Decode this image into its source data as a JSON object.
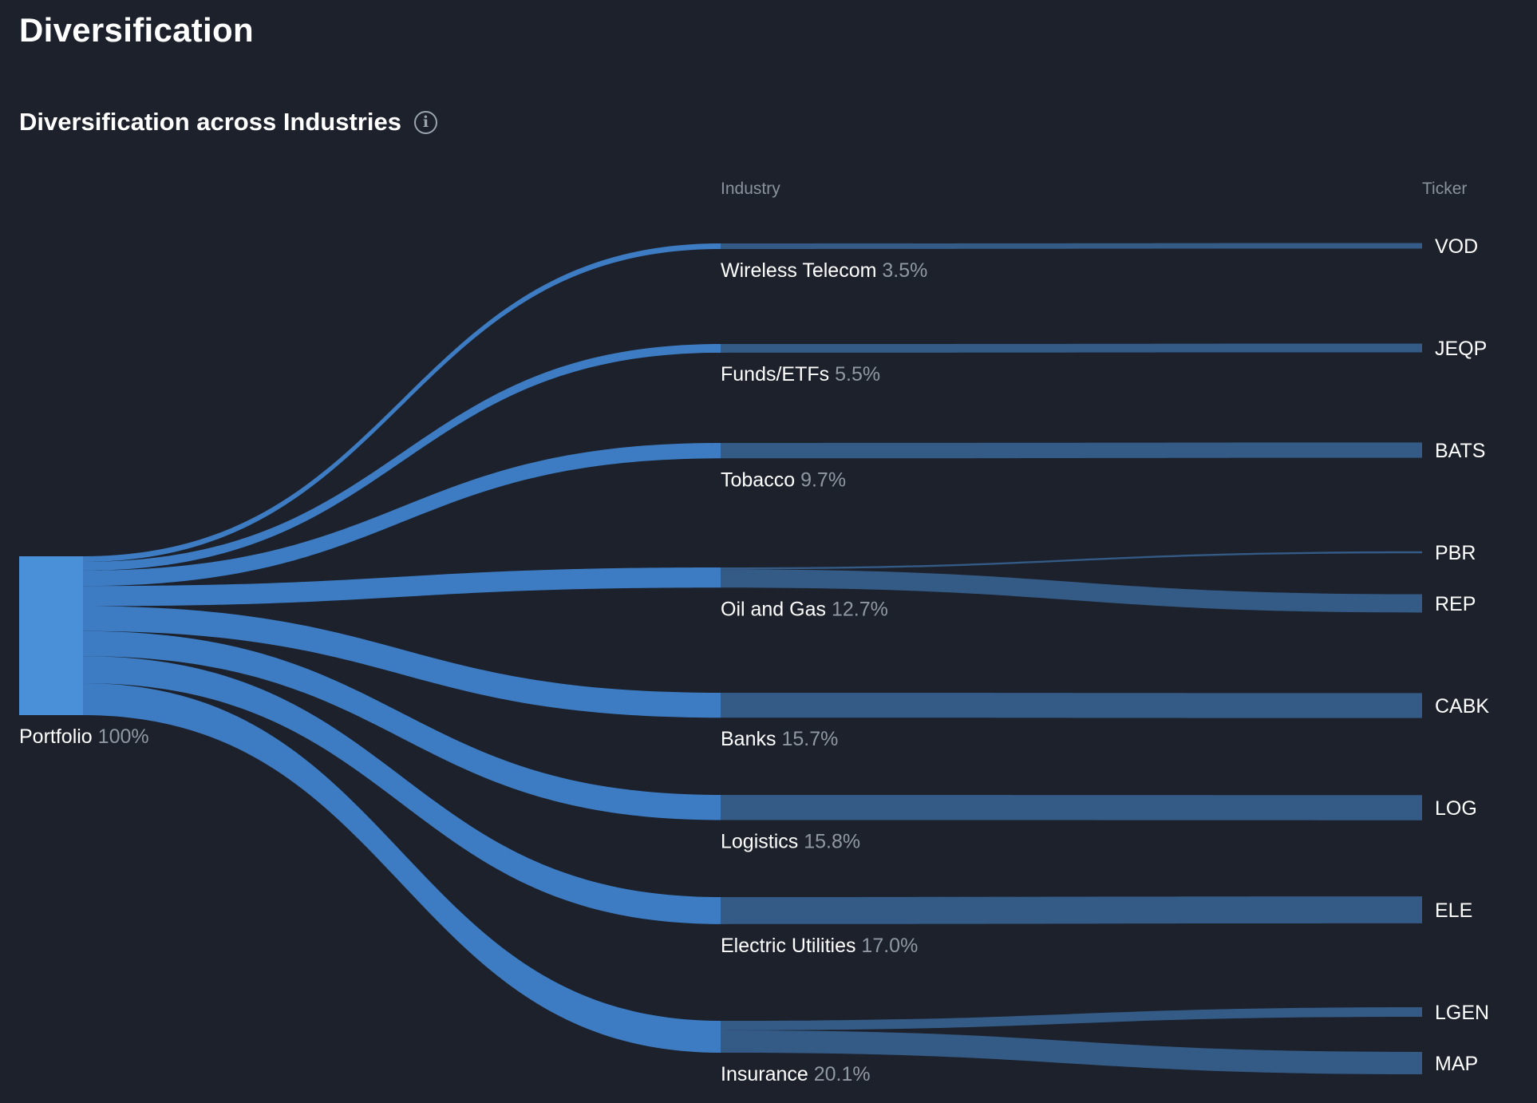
{
  "page": {
    "title": "Diversification"
  },
  "section": {
    "title": "Diversification across Industries",
    "info_icon": "info-icon"
  },
  "colors": {
    "background": "#1c212b",
    "source_node": "#4a90d9",
    "industry_flow": "#3f82cb",
    "ticker_flow": "#345a86"
  },
  "chart_data": {
    "type": "sankey",
    "columns": [
      "Industry",
      "Ticker"
    ],
    "source": {
      "name": "Portfolio",
      "pct": "100%"
    },
    "industries": [
      {
        "name": "Wireless Telecom",
        "pct": "3.5%",
        "value": 3.5
      },
      {
        "name": "Funds/ETFs",
        "pct": "5.5%",
        "value": 5.5
      },
      {
        "name": "Tobacco",
        "pct": "9.7%",
        "value": 9.7
      },
      {
        "name": "Oil and Gas",
        "pct": "12.7%",
        "value": 12.7
      },
      {
        "name": "Banks",
        "pct": "15.7%",
        "value": 15.7
      },
      {
        "name": "Logistics",
        "pct": "15.8%",
        "value": 15.8
      },
      {
        "name": "Electric Utilities",
        "pct": "17.0%",
        "value": 17.0
      },
      {
        "name": "Insurance",
        "pct": "20.1%",
        "value": 20.1
      }
    ],
    "tickers": [
      {
        "ticker": "VOD",
        "industry": "Wireless Telecom",
        "value": 3.5
      },
      {
        "ticker": "JEQP",
        "industry": "Funds/ETFs",
        "value": 5.5
      },
      {
        "ticker": "BATS",
        "industry": "Tobacco",
        "value": 9.7
      },
      {
        "ticker": "PBR",
        "industry": "Oil and Gas",
        "value": 1.2
      },
      {
        "ticker": "REP",
        "industry": "Oil and Gas",
        "value": 11.5
      },
      {
        "ticker": "CABK",
        "industry": "Banks",
        "value": 15.7
      },
      {
        "ticker": "LOG",
        "industry": "Logistics",
        "value": 15.8
      },
      {
        "ticker": "ELE",
        "industry": "Electric Utilities",
        "value": 17.0
      },
      {
        "ticker": "LGEN",
        "industry": "Insurance",
        "value": 6.0
      },
      {
        "ticker": "MAP",
        "industry": "Insurance",
        "value": 14.1
      }
    ]
  }
}
